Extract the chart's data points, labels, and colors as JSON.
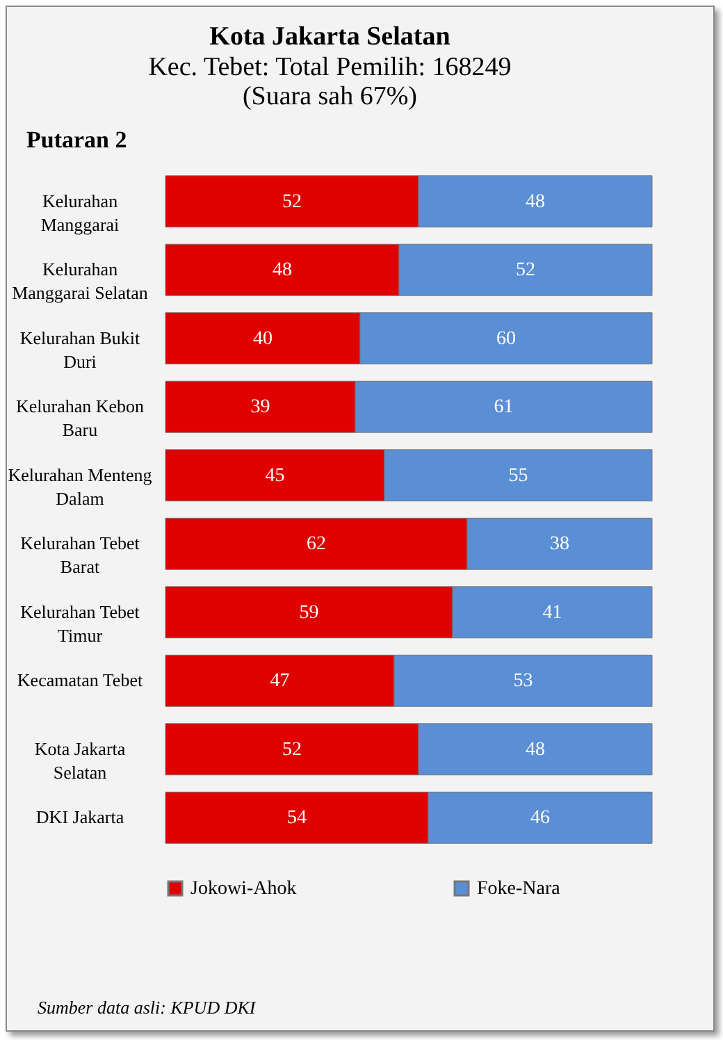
{
  "chart_data": {
    "type": "bar",
    "orientation": "horizontal",
    "stacked": true,
    "data_labels": true,
    "legend": "bottom",
    "title": "Kota Jakarta Selatan",
    "subtitle": "Kec. Tebet: Total Pemilih: 168249\n(Suara sah 67%)",
    "annotations": [
      "Putaran 2",
      "Sumber data asli: KPUD DKI"
    ],
    "categories": [
      "Kelurahan Manggarai",
      "Kelurahan Manggarai Selatan",
      "Kelurahan Bukit Duri",
      "Kelurahan Kebon Baru",
      "Kelurahan Menteng Dalam",
      "Kelurahan Tebet Barat",
      "Kelurahan Tebet Timur",
      "Kecamatan Tebet",
      "Kota Jakarta Selatan",
      "DKI Jakarta"
    ],
    "series": [
      {
        "name": "Jokowi-Ahok",
        "color": "#e00000",
        "values": [
          52,
          48,
          40,
          39,
          45,
          62,
          59,
          47,
          52,
          54
        ]
      },
      {
        "name": "Foke-Nara",
        "color": "#5b8fd5",
        "values": [
          48,
          52,
          60,
          61,
          55,
          38,
          41,
          53,
          48,
          46
        ]
      }
    ]
  }
}
